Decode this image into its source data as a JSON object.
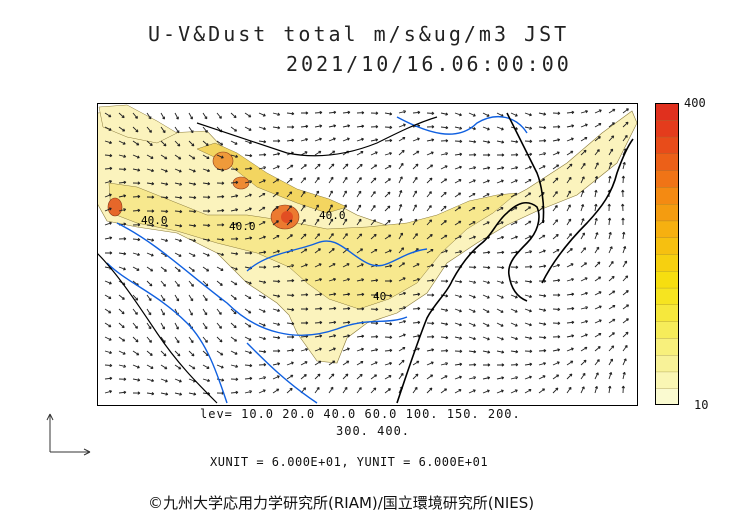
{
  "title_line1": "U-V&Dust total m/s&ug/m3 JST",
  "title_line2": "2021/10/16.06:00:00",
  "colorbar": {
    "max_label": "400",
    "min_label": "10",
    "colors": [
      "#fafad0",
      "#faf6b4",
      "#f8f298",
      "#f8f07c",
      "#f6ec5a",
      "#f6e83c",
      "#f6e420",
      "#f6de10",
      "#f6d010",
      "#f6c010",
      "#f6b010",
      "#f49c10",
      "#f48a12",
      "#f07416",
      "#ec6018",
      "#e84c1a",
      "#e43c1c",
      "#e0301e"
    ]
  },
  "contour_labels": [
    "40.0",
    "40.0",
    "40.0",
    "40"
  ],
  "legend": {
    "lev_line1": "lev= 10.0 20.0 40.0 60.0 100. 150. 200.",
    "lev_line2": "300. 400."
  },
  "units": "XUNIT = 6.000E+01, YUNIT = 6.000E+01",
  "copyright": "©九州大学応用力学研究所(RIAM)/国立環境研究所(NIES)",
  "colors": {
    "dust_low": "#f8f0b0",
    "dust_mid": "#f3de6a",
    "dust_high": "#e8702a",
    "rivers": "#1060e0",
    "coast": "#000000"
  }
}
